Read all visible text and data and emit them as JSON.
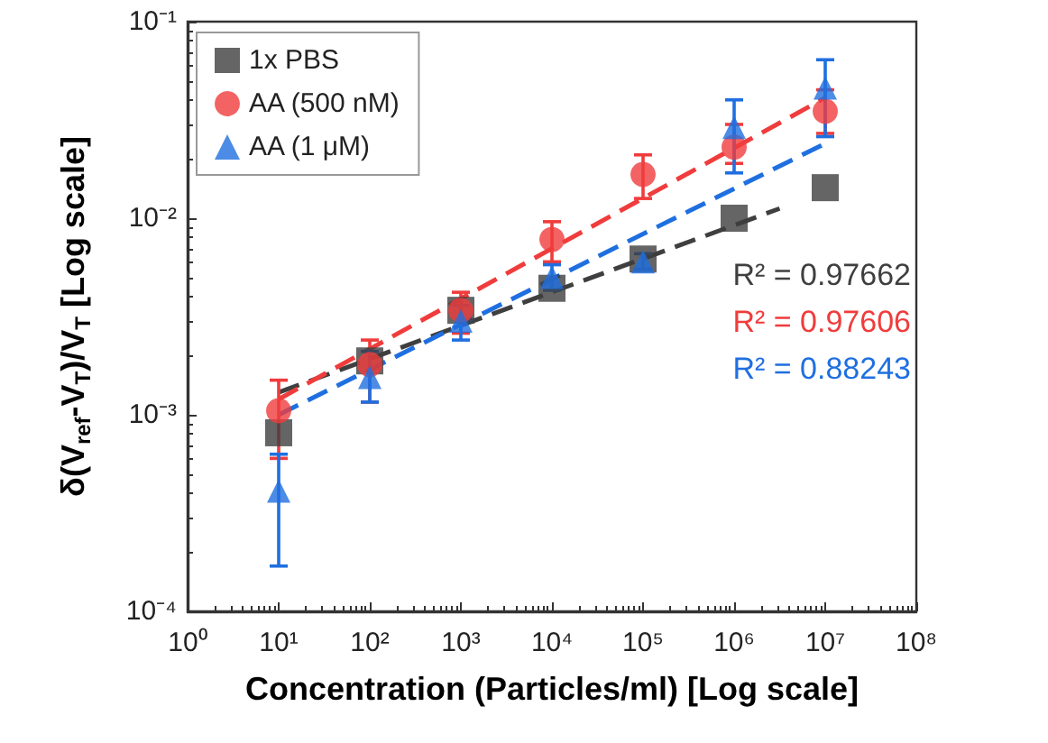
{
  "chart_data": {
    "type": "scatter",
    "xlabel": "Concentration (Particles/ml) [Log scale]",
    "ylabel": "δ(V$_{ref}$-V$_{T}$)/V$_{T}$ [Log scale]",
    "log": "xy",
    "legend": "top left",
    "grid": false,
    "xlim": [
      1,
      100000000
    ],
    "xticks": [
      {
        "value": 1,
        "label": "10⁰"
      },
      {
        "value": 10,
        "label": "10¹"
      },
      {
        "value": 100,
        "label": "10²"
      },
      {
        "value": 1000,
        "label": "10³"
      },
      {
        "value": 10000,
        "label": "10⁴"
      },
      {
        "value": 100000,
        "label": "10⁵"
      },
      {
        "value": 1000000,
        "label": "10⁶"
      },
      {
        "value": 10000000,
        "label": "10⁷"
      },
      {
        "value": 100000000,
        "label": "10⁸"
      }
    ],
    "ylim": [
      0.0001,
      0.1
    ],
    "yticks": [
      {
        "value": 0.0001,
        "label": "10⁻⁴"
      },
      {
        "value": 0.001,
        "label": "10⁻³"
      },
      {
        "value": 0.01,
        "label": "10⁻²"
      },
      {
        "value": 0.1,
        "label": "10⁻¹"
      }
    ],
    "x": [
      10,
      100,
      1000,
      10000,
      100000,
      1000000,
      10000000
    ],
    "series": [
      {
        "name": "1x PBS",
        "color": "#3f3f3f",
        "marker": "square",
        "values": [
          0.00081,
          0.00188,
          0.0034,
          0.0044,
          0.0062,
          0.01,
          0.0143
        ]
      },
      {
        "name": "AA (500 nM)",
        "color": "#f03c3c",
        "marker": "circle",
        "values": [
          0.00105,
          0.0018,
          0.0034,
          0.0078,
          0.0167,
          0.023,
          0.035
        ],
        "errors": [
          [
            0.0006,
            0.0015
          ],
          [
            0.00116,
            0.0024
          ],
          [
            0.0026,
            0.0042
          ],
          [
            0.006,
            0.0096
          ],
          [
            0.0126,
            0.021
          ],
          [
            0.019,
            0.03
          ],
          [
            0.027,
            0.045
          ]
        ]
      },
      {
        "name": "AA (1 μM)",
        "color": "#1f6fe0",
        "marker": "triangle",
        "values": [
          0.00041,
          0.00155,
          0.003,
          0.005,
          0.006,
          0.029,
          0.046
        ],
        "errors": [
          [
            0.00017,
            0.00063
          ],
          [
            0.00116,
            0.0021
          ],
          [
            0.0024,
            0.0036
          ],
          [
            0.0043,
            0.0058
          ],
          [
            0.0055,
            0.0066
          ],
          [
            0.017,
            0.04
          ],
          [
            0.026,
            0.064
          ]
        ]
      },
      {
        "type": "line",
        "color": "#3f3f3f",
        "line_style": "dashed",
        "marker": "none",
        "x": [
          10,
          3160000
        ],
        "values": [
          0.0013,
          0.0112
        ]
      },
      {
        "type": "line",
        "color": "#f03c3c",
        "line_style": "dashed",
        "marker": "none",
        "x": [
          10,
          10000000
        ],
        "values": [
          0.0012,
          0.041
        ]
      },
      {
        "type": "line",
        "color": "#1f6fe0",
        "line_style": "dashed",
        "marker": "none",
        "x": [
          10,
          10000000
        ],
        "values": [
          0.001,
          0.024
        ]
      }
    ],
    "annotations": [
      "R² = 0.97662",
      "R² = 0.97606",
      "R² = 0.88243"
    ]
  }
}
